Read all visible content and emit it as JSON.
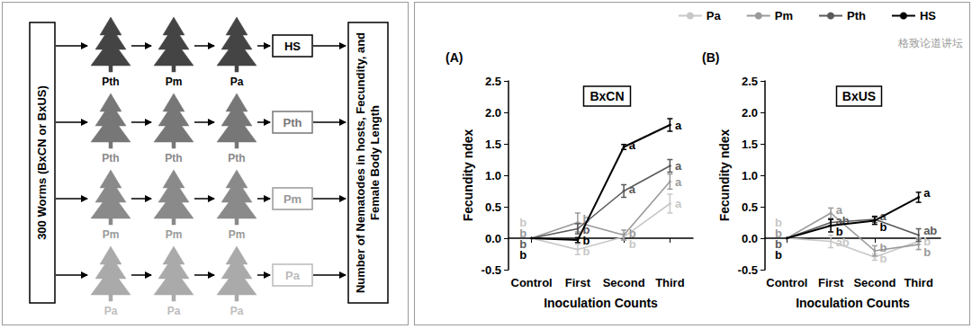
{
  "diagram": {
    "source": "300 Worms (BxCN or BxUS)",
    "rows": [
      {
        "hosts": [
          "Pth",
          "Pm",
          "Pa"
        ],
        "result": "HS"
      },
      {
        "hosts": [
          "Pth",
          "Pth",
          "Pth"
        ],
        "result": "Pth"
      },
      {
        "hosts": [
          "Pm",
          "Pm",
          "Pm"
        ],
        "result": "Pm"
      },
      {
        "hosts": [
          "Pa",
          "Pa",
          "Pa"
        ],
        "result": "Pa"
      }
    ],
    "output": "Number of Nematodes in hosts, Fecundity, and Female Body Length"
  },
  "watermark": "格致论道讲坛",
  "chart_data": [
    {
      "type": "line",
      "panel_label": "(A)",
      "title": "BxCN",
      "x_label": "Inoculation Counts",
      "y_label": "Fecundity ndex",
      "categories": [
        "Control",
        "First",
        "Second",
        "Third"
      ],
      "ylim": [
        -0.5,
        2.5
      ],
      "yticks": [
        -0.5,
        {
          "value": 0,
          "label": "0.0"
        },
        0.5,
        {
          "value": 1,
          "label": "1.0"
        },
        1.5,
        {
          "value": 2,
          "label": "2.0"
        },
        2.5
      ],
      "grid": false,
      "legend": "top",
      "series": [
        {
          "name": "Pa",
          "color": "#c8c8c8",
          "values": [
            0,
            -0.18,
            0.02,
            0.55
          ],
          "errors": [
            0,
            0.08,
            0.05,
            0.15
          ],
          "letters": [
            "b",
            "b",
            "b",
            "a"
          ]
        },
        {
          "name": "Pm",
          "color": "#9a9a9a",
          "values": [
            0,
            0.25,
            0.05,
            0.9
          ],
          "errors": [
            0,
            0.15,
            0.08,
            0.12
          ],
          "letters": [
            "b",
            "b",
            "b",
            "a"
          ]
        },
        {
          "name": "Pth",
          "color": "#5a5a5a",
          "values": [
            0,
            0.15,
            0.75,
            1.15
          ],
          "errors": [
            0,
            0.08,
            0.1,
            0.1
          ],
          "letters": [
            "b",
            "b",
            "a",
            "a"
          ]
        },
        {
          "name": "HS",
          "color": "#000000",
          "values": [
            0,
            -0.03,
            1.45,
            1.8
          ],
          "errors": [
            0,
            0.04,
            0.04,
            0.1
          ],
          "letters": [
            "b",
            "b",
            "a",
            "a"
          ]
        }
      ]
    },
    {
      "type": "line",
      "panel_label": "(B)",
      "title": "BxUS",
      "x_label": "Inoculation Counts",
      "y_label": "Fecundity ndex",
      "categories": [
        "Control",
        "First",
        "Second",
        "Third"
      ],
      "ylim": [
        -0.5,
        2.5
      ],
      "yticks": [
        -0.5,
        {
          "value": 0,
          "label": "0.0"
        },
        0.5,
        {
          "value": 1,
          "label": "1.0"
        },
        1.5,
        {
          "value": 2,
          "label": "2.0"
        },
        2.5
      ],
      "grid": false,
      "legend": "top",
      "series": [
        {
          "name": "Pa",
          "color": "#c8c8c8",
          "values": [
            0,
            -0.05,
            -0.3,
            -0.05
          ],
          "errors": [
            0,
            0.1,
            0.05,
            0.05
          ],
          "letters": [
            "b",
            "ab",
            "b",
            "b"
          ]
        },
        {
          "name": "Pm",
          "color": "#9a9a9a",
          "values": [
            0,
            0.4,
            -0.2,
            -0.1
          ],
          "errors": [
            0,
            0.08,
            0.08,
            0.08
          ],
          "letters": [
            "b",
            "a",
            "b",
            "b"
          ]
        },
        {
          "name": "Pth",
          "color": "#5a5a5a",
          "values": [
            0,
            0.25,
            0.3,
            0.05
          ],
          "errors": [
            0,
            0.05,
            0.05,
            0.1
          ],
          "letters": [
            "b",
            "ab",
            "a",
            "ab"
          ]
        },
        {
          "name": "HS",
          "color": "#000000",
          "values": [
            0,
            0.2,
            0.28,
            0.65
          ],
          "errors": [
            0,
            0.1,
            0.06,
            0.08
          ],
          "letters": [
            "b",
            "b",
            "b",
            "a"
          ]
        }
      ]
    }
  ]
}
